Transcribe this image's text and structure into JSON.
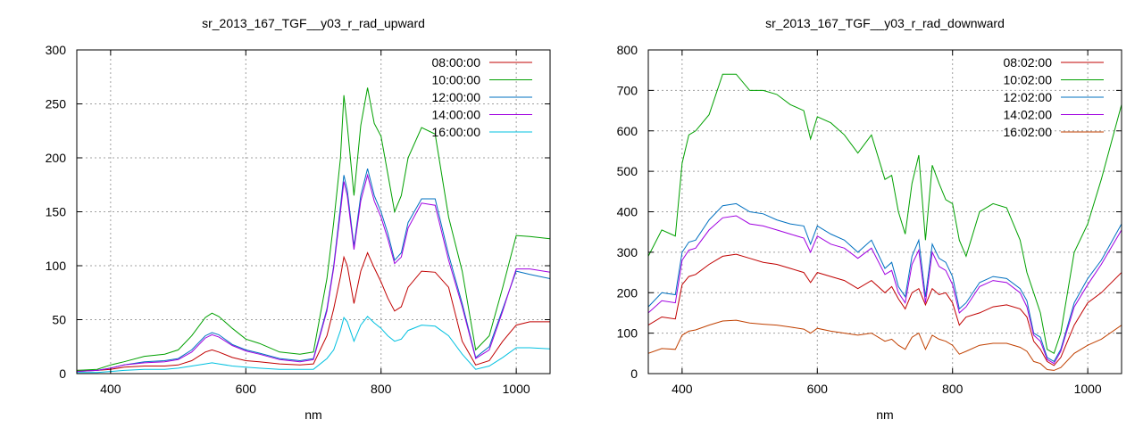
{
  "chart_data": [
    {
      "type": "line",
      "title": "sr_2013_167_TGF__y03_r_rad_upward",
      "xlabel": "nm",
      "ylabel": "",
      "xlim": [
        350,
        1050
      ],
      "ylim": [
        0,
        300
      ],
      "xticks": [
        400,
        600,
        800,
        1000
      ],
      "yticks": [
        0,
        50,
        100,
        150,
        200,
        250,
        300
      ],
      "grid": true,
      "legend": "top-right",
      "series": [
        {
          "name": "08:00:00",
          "color": "#c00000",
          "x": [
            350,
            380,
            400,
            420,
            450,
            480,
            500,
            520,
            540,
            550,
            560,
            580,
            600,
            620,
            650,
            680,
            700,
            720,
            730,
            740,
            745,
            750,
            760,
            770,
            780,
            790,
            800,
            810,
            820,
            830,
            840,
            860,
            880,
            900,
            920,
            940,
            960,
            980,
            1000,
            1020,
            1050
          ],
          "y": [
            3,
            3,
            4,
            6,
            7,
            7,
            8,
            12,
            20,
            22,
            20,
            15,
            12,
            11,
            9,
            8,
            9,
            35,
            60,
            90,
            108,
            100,
            65,
            95,
            112,
            98,
            85,
            70,
            58,
            62,
            80,
            95,
            94,
            80,
            30,
            8,
            12,
            30,
            45,
            48,
            48
          ]
        },
        {
          "name": "10:00:00",
          "color": "#00a000",
          "x": [
            350,
            380,
            400,
            420,
            450,
            480,
            500,
            520,
            540,
            550,
            560,
            580,
            600,
            620,
            650,
            680,
            700,
            720,
            730,
            740,
            745,
            750,
            760,
            770,
            780,
            790,
            800,
            810,
            820,
            830,
            840,
            860,
            880,
            900,
            920,
            940,
            960,
            980,
            1000,
            1020,
            1050
          ],
          "y": [
            3,
            4,
            8,
            11,
            16,
            18,
            22,
            35,
            52,
            56,
            53,
            42,
            32,
            28,
            20,
            18,
            20,
            88,
            140,
            200,
            258,
            230,
            165,
            230,
            265,
            232,
            220,
            185,
            150,
            165,
            200,
            228,
            222,
            145,
            95,
            22,
            35,
            80,
            128,
            127,
            125
          ]
        },
        {
          "name": "12:00:00",
          "color": "#0070c0",
          "x": [
            350,
            380,
            400,
            420,
            450,
            480,
            500,
            520,
            540,
            550,
            560,
            580,
            600,
            620,
            650,
            680,
            700,
            720,
            730,
            740,
            745,
            750,
            760,
            770,
            780,
            790,
            800,
            810,
            820,
            830,
            840,
            860,
            880,
            900,
            920,
            940,
            960,
            980,
            1000,
            1020,
            1050
          ],
          "y": [
            2,
            3,
            5,
            8,
            11,
            12,
            14,
            22,
            35,
            38,
            36,
            27,
            22,
            19,
            14,
            12,
            14,
            60,
            100,
            155,
            184,
            170,
            118,
            165,
            190,
            165,
            150,
            130,
            105,
            112,
            140,
            162,
            162,
            110,
            65,
            15,
            25,
            60,
            95,
            92,
            88
          ]
        },
        {
          "name": "14:00:00",
          "color": "#a000e0",
          "x": [
            350,
            380,
            400,
            420,
            450,
            480,
            500,
            520,
            540,
            550,
            560,
            580,
            600,
            620,
            650,
            680,
            700,
            720,
            730,
            740,
            745,
            750,
            760,
            770,
            780,
            790,
            800,
            810,
            820,
            830,
            840,
            860,
            880,
            900,
            920,
            940,
            960,
            980,
            1000,
            1020,
            1050
          ],
          "y": [
            2,
            3,
            5,
            8,
            10,
            11,
            13,
            20,
            33,
            36,
            34,
            26,
            21,
            18,
            13,
            11,
            13,
            58,
            98,
            150,
            178,
            165,
            115,
            160,
            184,
            160,
            145,
            125,
            102,
            108,
            135,
            158,
            156,
            105,
            62,
            14,
            22,
            58,
            97,
            97,
            94
          ]
        },
        {
          "name": "16:00:00",
          "color": "#00c0e0",
          "x": [
            350,
            380,
            400,
            420,
            450,
            480,
            500,
            520,
            540,
            550,
            560,
            580,
            600,
            620,
            650,
            680,
            700,
            720,
            730,
            740,
            745,
            750,
            760,
            770,
            780,
            790,
            800,
            810,
            820,
            830,
            840,
            860,
            880,
            900,
            920,
            940,
            960,
            980,
            1000,
            1020,
            1050
          ],
          "y": [
            1,
            1,
            2,
            3,
            4,
            4,
            5,
            7,
            9,
            10,
            9,
            7,
            6,
            5,
            4,
            4,
            4,
            14,
            22,
            40,
            52,
            48,
            30,
            45,
            53,
            47,
            42,
            35,
            30,
            32,
            40,
            45,
            44,
            35,
            18,
            4,
            7,
            15,
            24,
            24,
            23
          ]
        }
      ]
    },
    {
      "type": "line",
      "title": "sr_2013_167_TGF__y03_r_rad_downward",
      "xlabel": "nm",
      "ylabel": "",
      "xlim": [
        350,
        1050
      ],
      "ylim": [
        0,
        800
      ],
      "xticks": [
        400,
        600,
        800,
        1000
      ],
      "yticks": [
        0,
        100,
        200,
        300,
        400,
        500,
        600,
        700,
        800
      ],
      "grid": true,
      "legend": "top-right",
      "series": [
        {
          "name": "08:02:00",
          "color": "#c00000",
          "x": [
            350,
            370,
            390,
            400,
            410,
            420,
            440,
            460,
            480,
            500,
            520,
            540,
            560,
            580,
            590,
            600,
            620,
            640,
            660,
            680,
            700,
            710,
            720,
            730,
            740,
            750,
            760,
            770,
            780,
            790,
            800,
            810,
            820,
            840,
            860,
            880,
            900,
            910,
            920,
            930,
            940,
            950,
            960,
            980,
            1000,
            1020,
            1050
          ],
          "y": [
            120,
            140,
            135,
            220,
            240,
            245,
            270,
            290,
            295,
            285,
            275,
            270,
            260,
            250,
            225,
            250,
            240,
            230,
            210,
            230,
            200,
            215,
            185,
            160,
            200,
            210,
            170,
            210,
            195,
            200,
            175,
            120,
            140,
            150,
            165,
            170,
            160,
            140,
            80,
            60,
            30,
            20,
            40,
            120,
            175,
            200,
            250
          ]
        },
        {
          "name": "10:02:00",
          "color": "#00a000",
          "x": [
            350,
            370,
            390,
            400,
            410,
            420,
            440,
            460,
            480,
            500,
            520,
            540,
            560,
            580,
            590,
            600,
            620,
            640,
            660,
            680,
            700,
            710,
            720,
            730,
            740,
            750,
            760,
            770,
            780,
            790,
            800,
            810,
            820,
            840,
            860,
            880,
            900,
            910,
            920,
            930,
            940,
            950,
            960,
            980,
            1000,
            1020,
            1050
          ],
          "y": [
            290,
            355,
            340,
            520,
            590,
            600,
            640,
            740,
            740,
            700,
            700,
            690,
            665,
            650,
            580,
            635,
            620,
            590,
            545,
            590,
            480,
            490,
            400,
            345,
            470,
            540,
            330,
            515,
            470,
            430,
            420,
            330,
            290,
            400,
            420,
            410,
            330,
            250,
            200,
            150,
            60,
            50,
            100,
            300,
            370,
            480,
            665
          ]
        },
        {
          "name": "12:02:00",
          "color": "#0070c0",
          "x": [
            350,
            370,
            390,
            400,
            410,
            420,
            440,
            460,
            480,
            500,
            520,
            540,
            560,
            580,
            590,
            600,
            620,
            640,
            660,
            680,
            700,
            710,
            720,
            730,
            740,
            750,
            760,
            770,
            780,
            790,
            800,
            810,
            820,
            840,
            860,
            880,
            900,
            910,
            920,
            930,
            940,
            950,
            960,
            980,
            1000,
            1020,
            1050
          ],
          "y": [
            165,
            200,
            195,
            300,
            325,
            330,
            380,
            415,
            420,
            400,
            395,
            380,
            370,
            365,
            320,
            365,
            345,
            330,
            300,
            330,
            260,
            275,
            215,
            190,
            290,
            330,
            190,
            320,
            285,
            275,
            240,
            160,
            175,
            225,
            240,
            235,
            210,
            180,
            100,
            90,
            40,
            30,
            60,
            175,
            235,
            280,
            370
          ]
        },
        {
          "name": "14:02:00",
          "color": "#a000e0",
          "x": [
            350,
            370,
            390,
            400,
            410,
            420,
            440,
            460,
            480,
            500,
            520,
            540,
            560,
            580,
            590,
            600,
            620,
            640,
            660,
            680,
            700,
            710,
            720,
            730,
            740,
            750,
            760,
            770,
            780,
            790,
            800,
            810,
            820,
            840,
            860,
            880,
            900,
            910,
            920,
            930,
            940,
            950,
            960,
            980,
            1000,
            1020,
            1050
          ],
          "y": [
            150,
            180,
            175,
            280,
            305,
            310,
            355,
            385,
            390,
            370,
            365,
            355,
            345,
            335,
            300,
            340,
            320,
            310,
            285,
            310,
            245,
            255,
            200,
            175,
            270,
            305,
            175,
            300,
            265,
            255,
            220,
            150,
            165,
            215,
            230,
            225,
            200,
            165,
            95,
            80,
            35,
            25,
            55,
            165,
            220,
            270,
            355
          ]
        },
        {
          "name": "16:02:00",
          "color": "#c04000",
          "x": [
            350,
            370,
            390,
            400,
            410,
            420,
            440,
            460,
            480,
            500,
            520,
            540,
            560,
            580,
            590,
            600,
            620,
            640,
            660,
            680,
            700,
            710,
            720,
            730,
            740,
            750,
            760,
            770,
            780,
            790,
            800,
            810,
            820,
            840,
            860,
            880,
            900,
            910,
            920,
            930,
            940,
            950,
            960,
            980,
            1000,
            1020,
            1050
          ],
          "y": [
            50,
            62,
            60,
            95,
            105,
            108,
            120,
            130,
            132,
            125,
            122,
            120,
            115,
            110,
            100,
            112,
            105,
            100,
            95,
            100,
            80,
            85,
            70,
            60,
            90,
            100,
            60,
            95,
            85,
            80,
            70,
            48,
            55,
            70,
            75,
            75,
            65,
            55,
            30,
            25,
            10,
            8,
            15,
            50,
            70,
            85,
            120
          ]
        }
      ]
    }
  ]
}
